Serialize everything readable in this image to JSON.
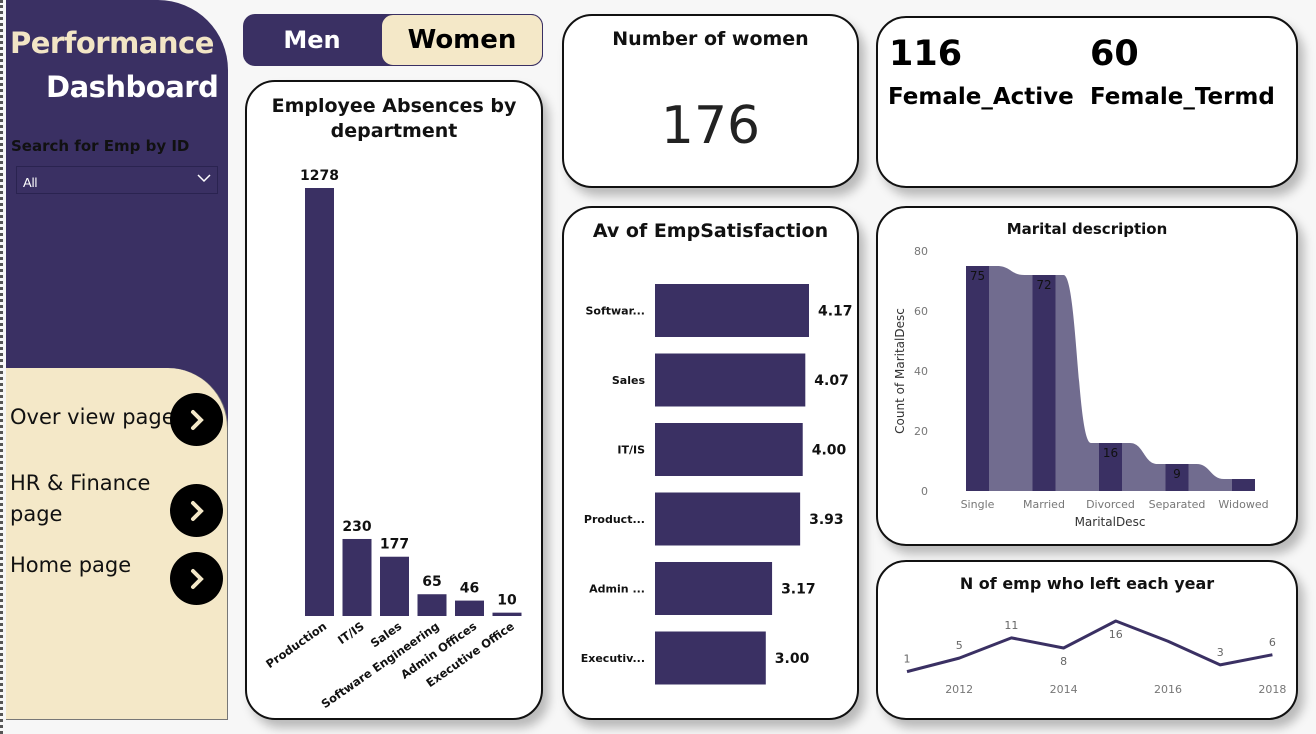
{
  "sidebar": {
    "title_line1": "Performance",
    "title_line2": "Dashboard",
    "search_label": "Search for Emp by ID",
    "search_value": "All",
    "nav": [
      {
        "label": "Over view page",
        "icon": "chevron-right-icon"
      },
      {
        "label": "HR & Finance page",
        "icon": "chevron-right-icon"
      },
      {
        "label": "Home page",
        "icon": "chevron-right-icon"
      }
    ]
  },
  "toggle": {
    "men_label": "Men",
    "women_label": "Women",
    "selected": "Women"
  },
  "kpi_women": {
    "title": "Number of women",
    "value": "176"
  },
  "kpi_status": {
    "active_value": "116",
    "active_label": "Female_Active",
    "termd_value": "60",
    "termd_label": "Female_Termd"
  },
  "colors": {
    "primary": "#3a3063",
    "cream": "#f4e8c8",
    "ribbon": "#716c8f"
  },
  "chart_data": [
    {
      "id": "absences",
      "type": "bar",
      "title": "Employee Absences by department",
      "categories": [
        "Production",
        "IT/IS",
        "Sales",
        "Software Engineering",
        "Admin Offices",
        "Executive Office"
      ],
      "values": [
        1278,
        230,
        177,
        65,
        46,
        10
      ],
      "xlabel": "",
      "ylabel": ""
    },
    {
      "id": "satisfaction",
      "type": "bar",
      "orientation": "horizontal",
      "title": "Av of EmpSatisfaction",
      "categories": [
        "Softwar...",
        "Sales",
        "IT/IS",
        "Product...",
        "Admin ...",
        "Executiv..."
      ],
      "values": [
        4.17,
        4.07,
        4.0,
        3.93,
        3.17,
        3.0
      ],
      "value_labels": [
        "4.17",
        "4.07",
        "4.00",
        "3.93",
        "3.17",
        "3.00"
      ]
    },
    {
      "id": "marital",
      "type": "bar",
      "variant": "ribbon",
      "title": "Marital description",
      "categories": [
        "Single",
        "Married",
        "Divorced",
        "Separated",
        "Widowed"
      ],
      "values": [
        75,
        72,
        16,
        9,
        4
      ],
      "data_labels": [
        "75",
        "72",
        "16",
        "9",
        ""
      ],
      "xlabel": "MaritalDesc",
      "ylabel": "Count of MaritalDesc",
      "ylim": [
        0,
        80
      ],
      "yticks": [
        "0",
        "20",
        "40",
        "60",
        "80"
      ]
    },
    {
      "id": "left_per_year",
      "type": "line",
      "title": "N of emp who left each year",
      "x": [
        2011,
        2012,
        2013,
        2014,
        2015,
        2016,
        2017,
        2018
      ],
      "values": [
        1,
        5,
        11,
        8,
        16,
        10,
        3,
        6
      ],
      "data_labels": [
        "1",
        "5",
        "11",
        "8",
        "16",
        "",
        "3",
        "6"
      ],
      "xticks": [
        "2012",
        "2014",
        "2016",
        "2018"
      ]
    }
  ]
}
